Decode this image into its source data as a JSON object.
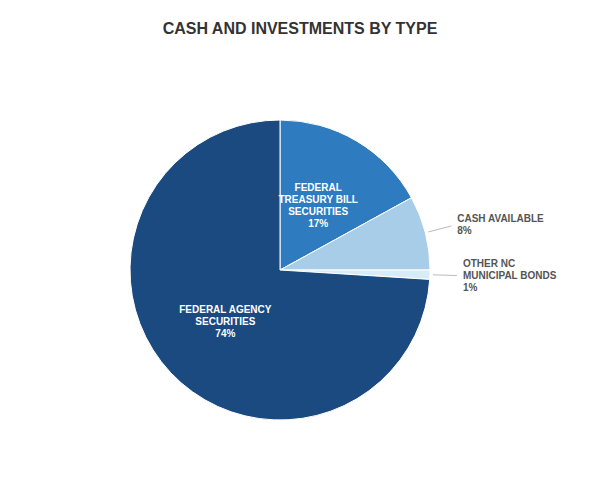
{
  "chart_data": {
    "type": "pie",
    "title": "CASH AND INVESTMENTS BY TYPE",
    "categories": [
      "FEDERAL\nTREASURY BILL\nSECURITIES",
      "CASH AVAILABLE",
      "OTHER NC\nMUNICIPAL BONDS",
      "FEDERAL AGENCY\nSECURITIES"
    ],
    "values": [
      17,
      8,
      1,
      74
    ],
    "value_labels": [
      "17%",
      "8%",
      "1%",
      "74%"
    ],
    "colors": [
      "#2e7bbf",
      "#a8cde8",
      "#d8ecf8",
      "#1a4a80"
    ],
    "data_labels": true
  }
}
